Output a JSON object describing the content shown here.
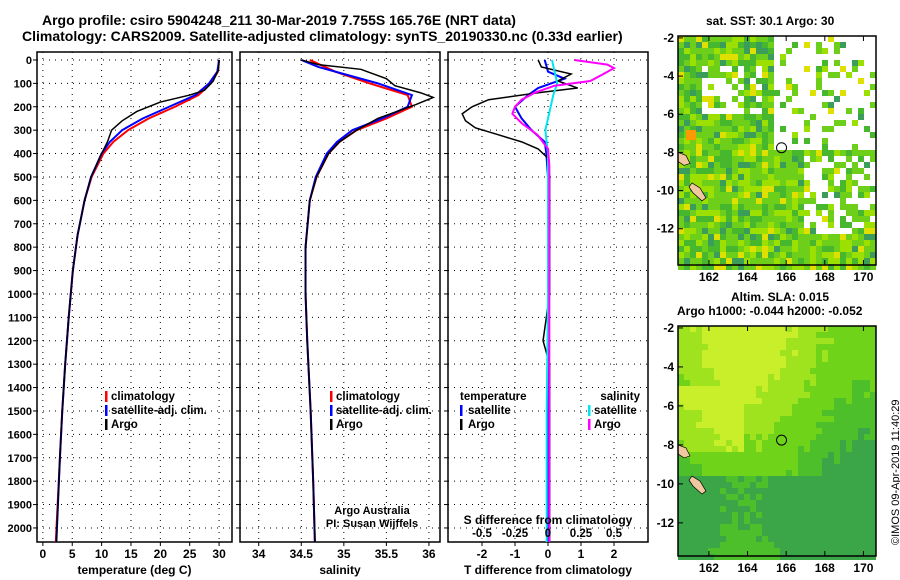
{
  "title": {
    "line1": "Argo profile: csiro 5904248_211 30-Mar-2019 7.755S 165.76E (NRT data)",
    "line2": "Climatology: CARS2009. Satellite-adjusted climatology: synTS_20190330.nc (0.33d earlier)"
  },
  "colors": {
    "clim": "#ff0000",
    "sat": "#0000ff",
    "argo": "#000000",
    "sat_s": "#00e5ee",
    "argo_s": "#ff00ff"
  },
  "credit": "©IMOS 09-Apr-2019 11:40:29",
  "chart_data": [
    {
      "type": "line",
      "id": "temp",
      "xlabel": "temperature (deg C)",
      "ylabel": "",
      "xlim": [
        -1,
        32.2
      ],
      "ylim": [
        -34,
        2060
      ],
      "xticks": [
        0,
        5,
        10,
        15,
        20,
        25,
        30
      ],
      "yticks": [
        0,
        100,
        200,
        300,
        400,
        500,
        600,
        700,
        800,
        900,
        1000,
        1100,
        1200,
        1300,
        1400,
        1500,
        1600,
        1700,
        1800,
        1900,
        2000
      ],
      "legend": [
        "climatology",
        "satellite-adj. clim.",
        "Argo"
      ],
      "legend_position": "bottom-center",
      "series": [
        {
          "name": "climatology",
          "color": "#ff0000",
          "depth": [
            0,
            50,
            100,
            150,
            200,
            250,
            300,
            350,
            400,
            500,
            600,
            750,
            900,
            1100,
            1300,
            1500,
            1700,
            2060
          ],
          "values": [
            30,
            29.8,
            28.6,
            26.5,
            22.5,
            18,
            14.5,
            12,
            10.3,
            8.3,
            7.1,
            5.9,
            5.1,
            4.4,
            3.8,
            3.3,
            2.9,
            2.2
          ]
        },
        {
          "name": "satellite-adj. clim.",
          "color": "#0000ff",
          "depth": [
            0,
            50,
            100,
            150,
            200,
            250,
            300,
            350,
            400,
            500,
            600,
            750,
            900,
            1100,
            1300,
            1500,
            1700,
            2060
          ],
          "values": [
            30,
            29.7,
            28.3,
            26,
            21.5,
            17,
            13.5,
            11.4,
            10,
            8.2,
            7.1,
            5.9,
            5.1,
            4.4,
            3.8,
            3.3,
            2.9,
            2.3
          ]
        },
        {
          "name": "Argo",
          "color": "#000000",
          "depth": [
            0,
            40,
            90,
            130,
            150,
            180,
            220,
            260,
            300,
            350,
            400,
            500,
            600,
            750,
            900,
            1100,
            1300,
            1500,
            1700,
            2060
          ],
          "values": [
            30,
            29.9,
            29,
            27.5,
            25,
            20,
            16,
            13.5,
            11.7,
            11,
            10,
            8.2,
            7.1,
            5.9,
            5.1,
            4.4,
            3.8,
            3.3,
            2.9,
            2.3
          ]
        }
      ]
    },
    {
      "type": "line",
      "id": "salinity",
      "xlabel": "salinity",
      "xlim": [
        33.78,
        36.13
      ],
      "ylim": [
        -34,
        2060
      ],
      "xticks": [
        34,
        34.5,
        35,
        35.5,
        36
      ],
      "legend": [
        "climatology",
        "satellite-adj. clim.",
        "Argo"
      ],
      "legend_position": "bottom-center",
      "annotation": [
        "Argo Australia",
        "PI: Susan Wijffels"
      ],
      "series": [
        {
          "name": "climatology",
          "color": "#ff0000",
          "depth": [
            0,
            50,
            100,
            150,
            200,
            250,
            300,
            350,
            400,
            500,
            600,
            800,
            1000,
            1200,
            1500,
            1800,
            2060
          ],
          "values": [
            34.6,
            34.9,
            35.3,
            35.75,
            35.8,
            35.5,
            35.15,
            34.95,
            34.82,
            34.68,
            34.6,
            34.55,
            34.55,
            34.57,
            34.61,
            34.64,
            34.66
          ]
        },
        {
          "name": "satellite-adj. clim.",
          "color": "#0000ff",
          "depth": [
            0,
            30,
            60,
            100,
            150,
            200,
            250,
            300,
            350,
            400,
            500,
            600,
            800,
            1000,
            1200,
            1500,
            1800,
            2060
          ],
          "values": [
            34.5,
            34.7,
            35.0,
            35.4,
            35.8,
            35.75,
            35.45,
            35.1,
            34.92,
            34.8,
            34.67,
            34.6,
            34.55,
            34.55,
            34.57,
            34.61,
            34.64,
            34.66
          ]
        },
        {
          "name": "Argo",
          "color": "#000000",
          "depth": [
            0,
            20,
            40,
            80,
            110,
            140,
            160,
            175,
            190,
            210,
            250,
            300,
            350,
            400,
            500,
            600,
            800,
            1000,
            1200,
            1500,
            1800,
            2060
          ],
          "values": [
            34.5,
            34.7,
            35.2,
            35.5,
            35.6,
            35.9,
            36.05,
            35.95,
            35.85,
            35.7,
            35.4,
            35.15,
            34.95,
            34.82,
            34.68,
            34.6,
            34.55,
            34.55,
            34.57,
            34.61,
            34.64,
            34.66
          ]
        }
      ]
    },
    {
      "type": "line",
      "id": "difference",
      "xlabel": "T difference from climatology",
      "xlabel_top": "S difference from climatology",
      "xlim": [
        -3.03,
        3.03
      ],
      "ylim": [
        -34,
        2060
      ],
      "xticks": [
        -2,
        -1,
        0,
        1,
        2
      ],
      "s_ticks": [
        -0.5,
        -0.25,
        0,
        0.25,
        0.5
      ],
      "s_tick_labels": [
        "-0.5",
        "-0.25",
        "0",
        "0.25",
        "0.5"
      ],
      "legend_t": {
        "title": "temperature",
        "items": [
          "satellite",
          "Argo"
        ]
      },
      "legend_s": {
        "title": "salinity",
        "items": [
          "satellite",
          "Argo"
        ]
      },
      "series": [
        {
          "name": "T satellite",
          "color": "#0000ff",
          "depth": [
            0,
            50,
            80,
            120,
            150,
            200,
            250,
            300,
            350,
            400,
            500,
            1000,
            1500,
            2060
          ],
          "values": [
            -0.1,
            0,
            0.5,
            -0.3,
            -0.6,
            -1.0,
            -0.8,
            -0.5,
            -0.1,
            -0.05,
            0,
            0,
            0,
            0
          ]
        },
        {
          "name": "T Argo",
          "color": "#000000",
          "depth": [
            0,
            30,
            60,
            90,
            120,
            140,
            170,
            200,
            230,
            260,
            290,
            320,
            350,
            380,
            420,
            500,
            1000,
            1200,
            1300,
            1500,
            2060
          ],
          "values": [
            -0.3,
            -0.2,
            0.7,
            0.3,
            0.9,
            -0.3,
            -1.8,
            -2.3,
            -2.6,
            -2.5,
            -2.2,
            -1.5,
            -0.8,
            -0.3,
            0,
            0.05,
            0.05,
            -0.15,
            0.05,
            0.05,
            0.05
          ]
        },
        {
          "name": "S satellite",
          "color": "#00e5ee",
          "depth": [
            0,
            50,
            100,
            150,
            200,
            250,
            300,
            400,
            600,
            1000,
            1500,
            2060
          ],
          "values": [
            0.03,
            0.05,
            0.07,
            0.04,
            0.02,
            0,
            -0.02,
            0,
            0,
            0,
            -0.01,
            -0.01
          ],
          "s_units": true
        },
        {
          "name": "S Argo",
          "color": "#ff00ff",
          "depth": [
            0,
            20,
            35,
            60,
            90,
            110,
            140,
            170,
            200,
            230,
            270,
            320,
            380,
            450,
            1000,
            2060
          ],
          "values": [
            0.2,
            0.45,
            0.5,
            0.42,
            0.32,
            0.05,
            -0.1,
            -0.2,
            -0.25,
            -0.27,
            -0.2,
            -0.08,
            0,
            0.01,
            0.01,
            0.01
          ],
          "s_units": true
        }
      ]
    },
    {
      "type": "heatmap",
      "id": "sst-map",
      "title": "sat. SST: 30.1 Argo: 30",
      "xlim": [
        160.4,
        170.65
      ],
      "ylim": [
        -13.9,
        -1.9
      ],
      "xticks": [
        162,
        164,
        166,
        168,
        170
      ],
      "yticks": [
        -2,
        -4,
        -6,
        -8,
        -10,
        -12
      ],
      "marker": {
        "lon": 165.76,
        "lat": -7.755
      }
    },
    {
      "type": "heatmap",
      "id": "sla-map",
      "title": "Altim. SLA: 0.015",
      "subtitle": "Argo h1000: -0.044 h2000: -0.052",
      "xlim": [
        160.4,
        170.65
      ],
      "ylim": [
        -13.7,
        -1.9
      ],
      "xticks": [
        162,
        164,
        166,
        168,
        170
      ],
      "yticks": [
        -2,
        -4,
        -6,
        -8,
        -10,
        -12
      ],
      "marker": {
        "lon": 165.76,
        "lat": -7.755
      }
    }
  ]
}
